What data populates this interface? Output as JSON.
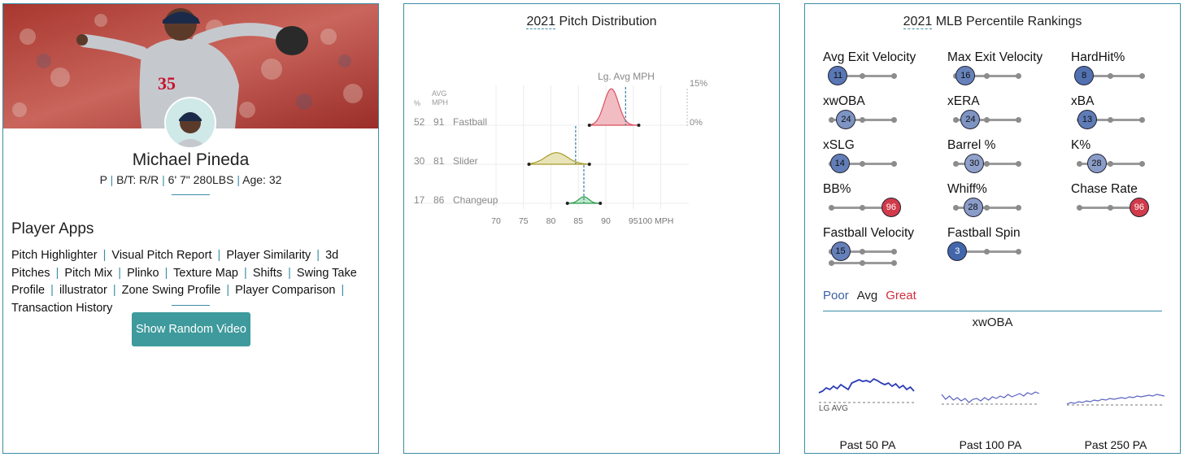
{
  "player": {
    "name": "Michael Pineda",
    "position": "P",
    "bt": "B/T: R/R",
    "size": "6' 7\" 280LBS",
    "age": "Age: 32",
    "jersey": "35"
  },
  "apps": {
    "title": "Player Apps",
    "links": [
      "Pitch Highlighter",
      "Visual Pitch Report",
      "Player Similarity",
      "3d Pitches",
      "Pitch Mix",
      "Plinko",
      "Texture Map",
      "Shifts",
      "Swing Take Profile",
      "illustrator",
      "Zone Swing Profile",
      "Player Comparison",
      "Transaction History"
    ],
    "button": "Show Random Video"
  },
  "pitch_dist": {
    "title_year": "2021",
    "title_rest": " Pitch Distribution",
    "lg_avg_label": "Lg. Avg MPH",
    "pct_header": "%",
    "avg_header_1": "AVG",
    "avg_header_2": "MPH",
    "scale_top": "15%",
    "scale_bottom": "0%",
    "x_ticks": [
      "70",
      "75",
      "80",
      "85",
      "90",
      "95",
      "100 MPH"
    ],
    "pitches": [
      {
        "pct": "52",
        "mph": "91",
        "name": "Fastball",
        "color": "#d9505f",
        "fill": "#f2bcc3",
        "min": 87,
        "max": 96,
        "sd": 1.3,
        "lg_avg": 93.6
      },
      {
        "pct": "30",
        "mph": "81",
        "name": "Slider",
        "color": "#a89c2a",
        "fill": "#e8e3b8",
        "min": 76,
        "max": 87,
        "sd": 2.0,
        "lg_avg": 84.5
      },
      {
        "pct": "17",
        "mph": "86",
        "name": "Changeup",
        "color": "#2e9b4f",
        "fill": "#bde8c7",
        "min": 83,
        "max": 89,
        "sd": 0.9,
        "lg_avg": 86.0
      }
    ]
  },
  "percentile": {
    "title_year": "2021",
    "title_rest": " MLB Percentile Rankings",
    "metrics": [
      {
        "label": "Avg Exit Velocity",
        "value": 11
      },
      {
        "label": "Max Exit Velocity",
        "value": 16
      },
      {
        "label": "HardHit%",
        "value": 8
      },
      {
        "label": "xwOBA",
        "value": 24
      },
      {
        "label": "xERA",
        "value": 24
      },
      {
        "label": "xBA",
        "value": 13
      },
      {
        "label": "xSLG",
        "value": 14
      },
      {
        "label": "Barrel %",
        "value": 30
      },
      {
        "label": "K%",
        "value": 28
      },
      {
        "label": "BB%",
        "value": 96
      },
      {
        "label": "Whiff%",
        "value": 28
      },
      {
        "label": "Chase Rate",
        "value": 96
      },
      {
        "label": "Fastball Velocity",
        "value": 15
      },
      {
        "label": "Fastball Spin",
        "value": 3
      }
    ],
    "legend": {
      "poor": "Poor",
      "avg": "Avg",
      "great": "Great"
    },
    "colors": {
      "poor": "#3a5fa8",
      "great": "#d22d3d"
    },
    "xwoba_title": "xwOBA",
    "lg_avg_label": "LG AVG",
    "sparklines": [
      {
        "label": "Past 50 PA"
      },
      {
        "label": "Past 100 PA"
      },
      {
        "label": "Past 250 PA"
      }
    ]
  }
}
